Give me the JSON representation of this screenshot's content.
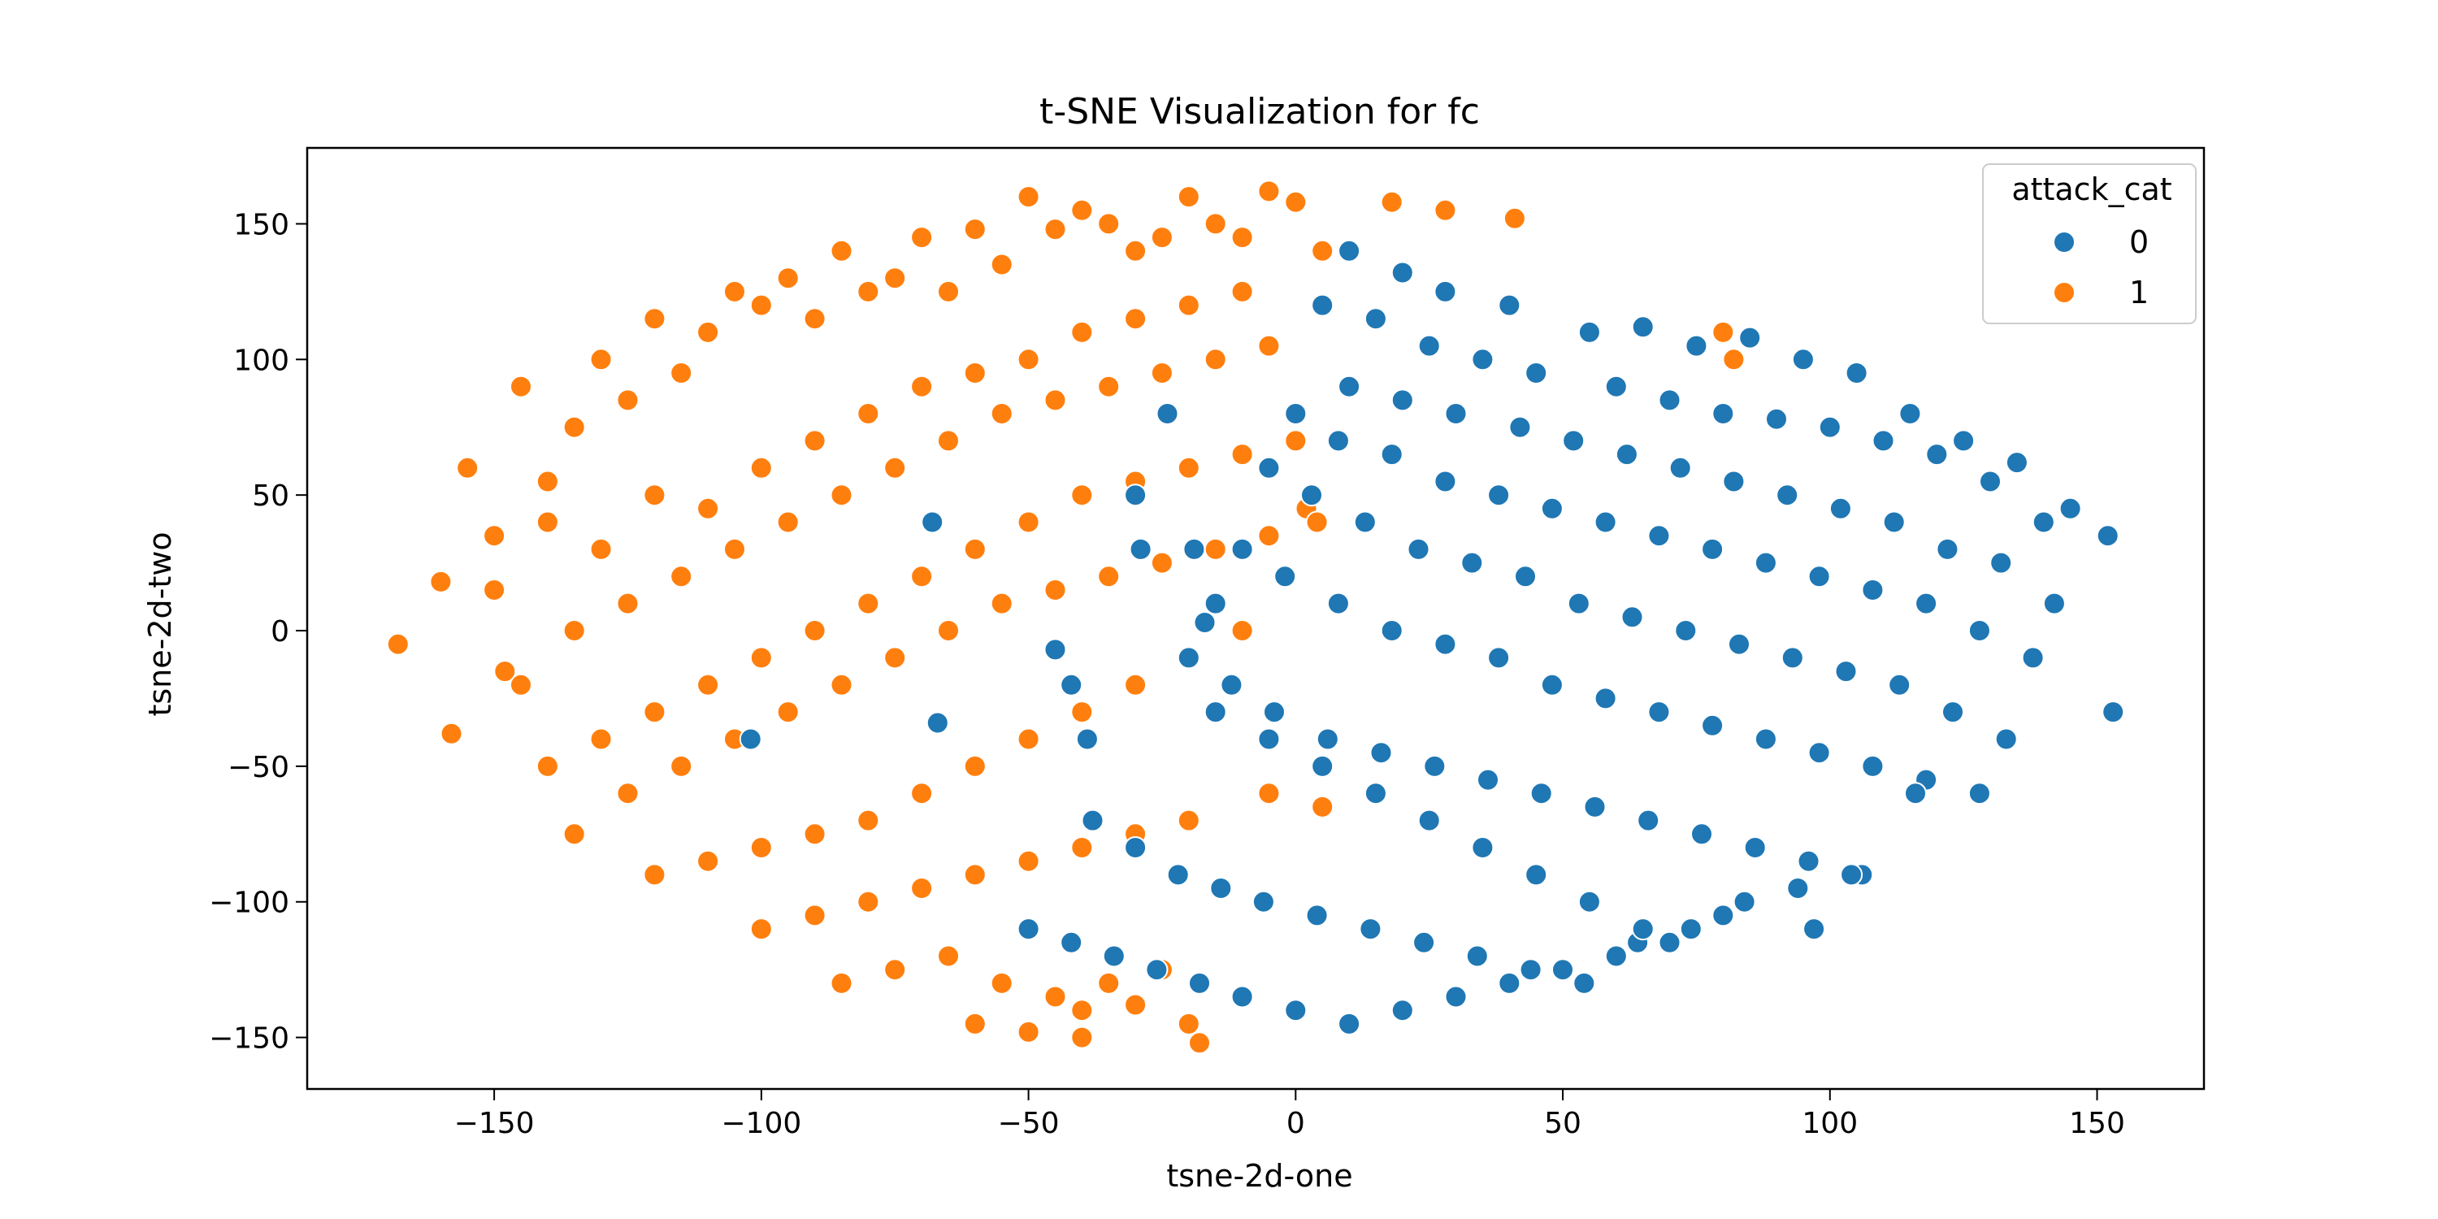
{
  "chart_data": {
    "type": "scatter",
    "title": "t-SNE Visualization for fc",
    "xlabel": "tsne-2d-one",
    "ylabel": "tsne-2d-two",
    "xlim": [
      -185,
      170
    ],
    "ylim": [
      -169,
      178
    ],
    "xticks": [
      -150,
      -100,
      -50,
      0,
      50,
      100,
      150
    ],
    "yticks": [
      -150,
      -100,
      -50,
      0,
      50,
      100,
      150
    ],
    "xtick_labels": [
      "−150",
      "−100",
      "−50",
      "0",
      "50",
      "100",
      "150"
    ],
    "ytick_labels": [
      "−150",
      "−100",
      "−50",
      "0",
      "50",
      "100",
      "150"
    ],
    "grid": false,
    "legend": {
      "title": "attack_cat",
      "placement": "top-right",
      "entries": [
        "0",
        "1"
      ]
    },
    "series": [
      {
        "name": "0",
        "color": "#1f77b4",
        "description_free": true,
        "x": [
          10,
          20,
          28,
          40,
          55,
          65,
          75,
          85,
          95,
          105,
          115,
          125,
          135,
          145,
          152,
          153,
          5,
          15,
          25,
          35,
          45,
          60,
          70,
          80,
          90,
          100,
          110,
          120,
          130,
          140,
          10,
          20,
          30,
          42,
          52,
          62,
          72,
          82,
          92,
          102,
          112,
          122,
          132,
          142,
          0,
          8,
          18,
          28,
          38,
          48,
          58,
          68,
          78,
          88,
          98,
          108,
          118,
          128,
          138,
          -5,
          3,
          13,
          23,
          33,
          43,
          53,
          63,
          73,
          83,
          93,
          103,
          113,
          123,
          133,
          -10,
          -2,
          8,
          18,
          28,
          38,
          48,
          58,
          68,
          78,
          88,
          98,
          108,
          118,
          128,
          -20,
          -12,
          -4,
          6,
          16,
          26,
          36,
          46,
          56,
          66,
          76,
          86,
          96,
          106,
          116,
          -38,
          -30,
          -22,
          -14,
          -6,
          4,
          14,
          24,
          34,
          44,
          54,
          64,
          74,
          84,
          94,
          104,
          -50,
          -42,
          -34,
          -26,
          -18,
          -10,
          0,
          10,
          20,
          30,
          40,
          50,
          60,
          70,
          80,
          97,
          -15,
          -5,
          5,
          15,
          25,
          35,
          45,
          55,
          65,
          -68,
          -102,
          -30,
          -24,
          -29,
          -45,
          -42,
          -39,
          -67,
          -19,
          -15,
          -17
        ],
        "y": [
          140,
          132,
          125,
          120,
          110,
          112,
          105,
          108,
          100,
          95,
          80,
          70,
          62,
          45,
          35,
          -30,
          120,
          115,
          105,
          100,
          95,
          90,
          85,
          80,
          78,
          75,
          70,
          65,
          55,
          40,
          90,
          85,
          80,
          75,
          70,
          65,
          60,
          55,
          50,
          45,
          40,
          30,
          25,
          10,
          80,
          70,
          65,
          55,
          50,
          45,
          40,
          35,
          30,
          25,
          20,
          15,
          10,
          0,
          -10,
          60,
          50,
          40,
          30,
          25,
          20,
          10,
          5,
          0,
          -5,
          -10,
          -15,
          -20,
          -30,
          -40,
          30,
          20,
          10,
          0,
          -5,
          -10,
          -20,
          -25,
          -30,
          -35,
          -40,
          -45,
          -50,
          -55,
          -60,
          -10,
          -20,
          -30,
          -40,
          -45,
          -50,
          -55,
          -60,
          -65,
          -70,
          -75,
          -80,
          -85,
          -90,
          -60,
          -70,
          -80,
          -90,
          -95,
          -100,
          -105,
          -110,
          -115,
          -120,
          -125,
          -130,
          -115,
          -110,
          -100,
          -95,
          -90,
          -110,
          -115,
          -120,
          -125,
          -130,
          -135,
          -140,
          -145,
          -140,
          -135,
          -130,
          -125,
          -120,
          -115,
          -105,
          -110,
          -30,
          -40,
          -50,
          -60,
          -70,
          -80,
          -90,
          -100,
          -110,
          40,
          -40,
          50,
          80,
          30,
          -7,
          -20,
          -40,
          -34,
          30,
          10,
          3
        ]
      },
      {
        "name": "1",
        "color": "#ff7f0e",
        "x": [
          -168,
          -160,
          -158,
          -155,
          -150,
          -148,
          -145,
          -140,
          -135,
          -130,
          -125,
          -120,
          -115,
          -110,
          -105,
          -100,
          -95,
          -90,
          -85,
          -80,
          -75,
          -70,
          -65,
          -60,
          -55,
          -50,
          -45,
          -40,
          -35,
          -30,
          -25,
          -20,
          -15,
          -10,
          -5,
          0,
          5,
          -150,
          -140,
          -130,
          -120,
          -110,
          -100,
          -90,
          -80,
          -70,
          -60,
          -50,
          -40,
          -30,
          -20,
          -10,
          -145,
          -135,
          -125,
          -115,
          -105,
          -95,
          -85,
          -75,
          -65,
          -55,
          -45,
          -35,
          -25,
          -15,
          -5,
          -140,
          -130,
          -120,
          -110,
          -100,
          -90,
          -80,
          -70,
          -60,
          -50,
          -40,
          -30,
          -20,
          -10,
          0,
          -135,
          -125,
          -115,
          -105,
          -95,
          -85,
          -75,
          -65,
          -55,
          -45,
          -35,
          -25,
          -15,
          -5,
          -120,
          -110,
          -100,
          -90,
          -80,
          -70,
          -60,
          -50,
          -40,
          -30,
          -20,
          -10,
          -100,
          -90,
          -80,
          -70,
          -60,
          -50,
          -40,
          -30,
          -20,
          -85,
          -75,
          -65,
          -55,
          -45,
          -35,
          -25,
          -60,
          -50,
          -40,
          -30,
          -20,
          18,
          28,
          41,
          -40,
          -18,
          -5,
          5,
          80,
          82,
          2,
          4
        ],
        "y": [
          -5,
          18,
          -38,
          60,
          35,
          -15,
          90,
          55,
          75,
          100,
          85,
          115,
          95,
          110,
          125,
          120,
          130,
          115,
          140,
          125,
          130,
          145,
          125,
          148,
          135,
          160,
          148,
          155,
          150,
          140,
          145,
          160,
          150,
          145,
          162,
          158,
          140,
          15,
          40,
          30,
          50,
          45,
          60,
          70,
          80,
          90,
          95,
          100,
          110,
          115,
          120,
          125,
          -20,
          0,
          10,
          20,
          30,
          40,
          50,
          60,
          70,
          80,
          85,
          90,
          95,
          100,
          105,
          -50,
          -40,
          -30,
          -20,
          -10,
          0,
          10,
          20,
          30,
          40,
          50,
          55,
          60,
          65,
          70,
          -75,
          -60,
          -50,
          -40,
          -30,
          -20,
          -10,
          0,
          10,
          15,
          20,
          25,
          30,
          35,
          -90,
          -85,
          -80,
          -75,
          -70,
          -60,
          -50,
          -40,
          -30,
          -20,
          -10,
          0,
          -110,
          -105,
          -100,
          -95,
          -90,
          -85,
          -80,
          -75,
          -70,
          -130,
          -125,
          -120,
          -130,
          -135,
          -130,
          -125,
          -145,
          -148,
          -140,
          -138,
          -145,
          158,
          155,
          152,
          -150,
          -152,
          -60,
          -65,
          110,
          100,
          45,
          40
        ]
      }
    ]
  }
}
